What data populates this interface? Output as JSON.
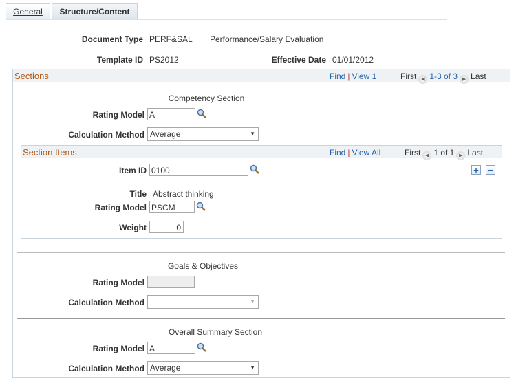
{
  "tabs": [
    {
      "label": "General"
    },
    {
      "label": "Structure/Content"
    }
  ],
  "header": {
    "document_type_label": "Document Type",
    "document_type_code": "PERF&SAL",
    "document_type_desc": "Performance/Salary Evaluation",
    "template_id_label": "Template ID",
    "template_id": "PS2012",
    "effective_date_label": "Effective Date",
    "effective_date": "01/01/2012"
  },
  "sections": {
    "title": "Sections",
    "find": "Find",
    "view": "View 1",
    "first": "First",
    "range": "1-3 of 3",
    "last": "Last",
    "competency": {
      "title": "Competency Section",
      "rating_model_label": "Rating Model",
      "rating_model": "A",
      "calc_method_label": "Calculation Method",
      "calc_method": "Average"
    },
    "items": {
      "title": "Section Items",
      "find": "Find",
      "view": "View All",
      "first": "First",
      "range": "1 of 1",
      "last": "Last",
      "item_id_label": "Item ID",
      "item_id": "0100",
      "title_label": "Title",
      "title_value": "Abstract thinking",
      "rating_model_label": "Rating Model",
      "rating_model": "PSCM",
      "weight_label": "Weight",
      "weight": "0"
    },
    "goals": {
      "title": "Goals & Objectives",
      "rating_model_label": "Rating Model",
      "rating_model": "",
      "calc_method_label": "Calculation Method",
      "calc_method": ""
    },
    "summary": {
      "title": "Overall Summary Section",
      "rating_model_label": "Rating Model",
      "rating_model": "A",
      "calc_method_label": "Calculation Method",
      "calc_method": "Average"
    }
  },
  "colors": {
    "section_title": "#b25b1c",
    "link": "#2662a8",
    "header_bg": "#eef2f5"
  }
}
